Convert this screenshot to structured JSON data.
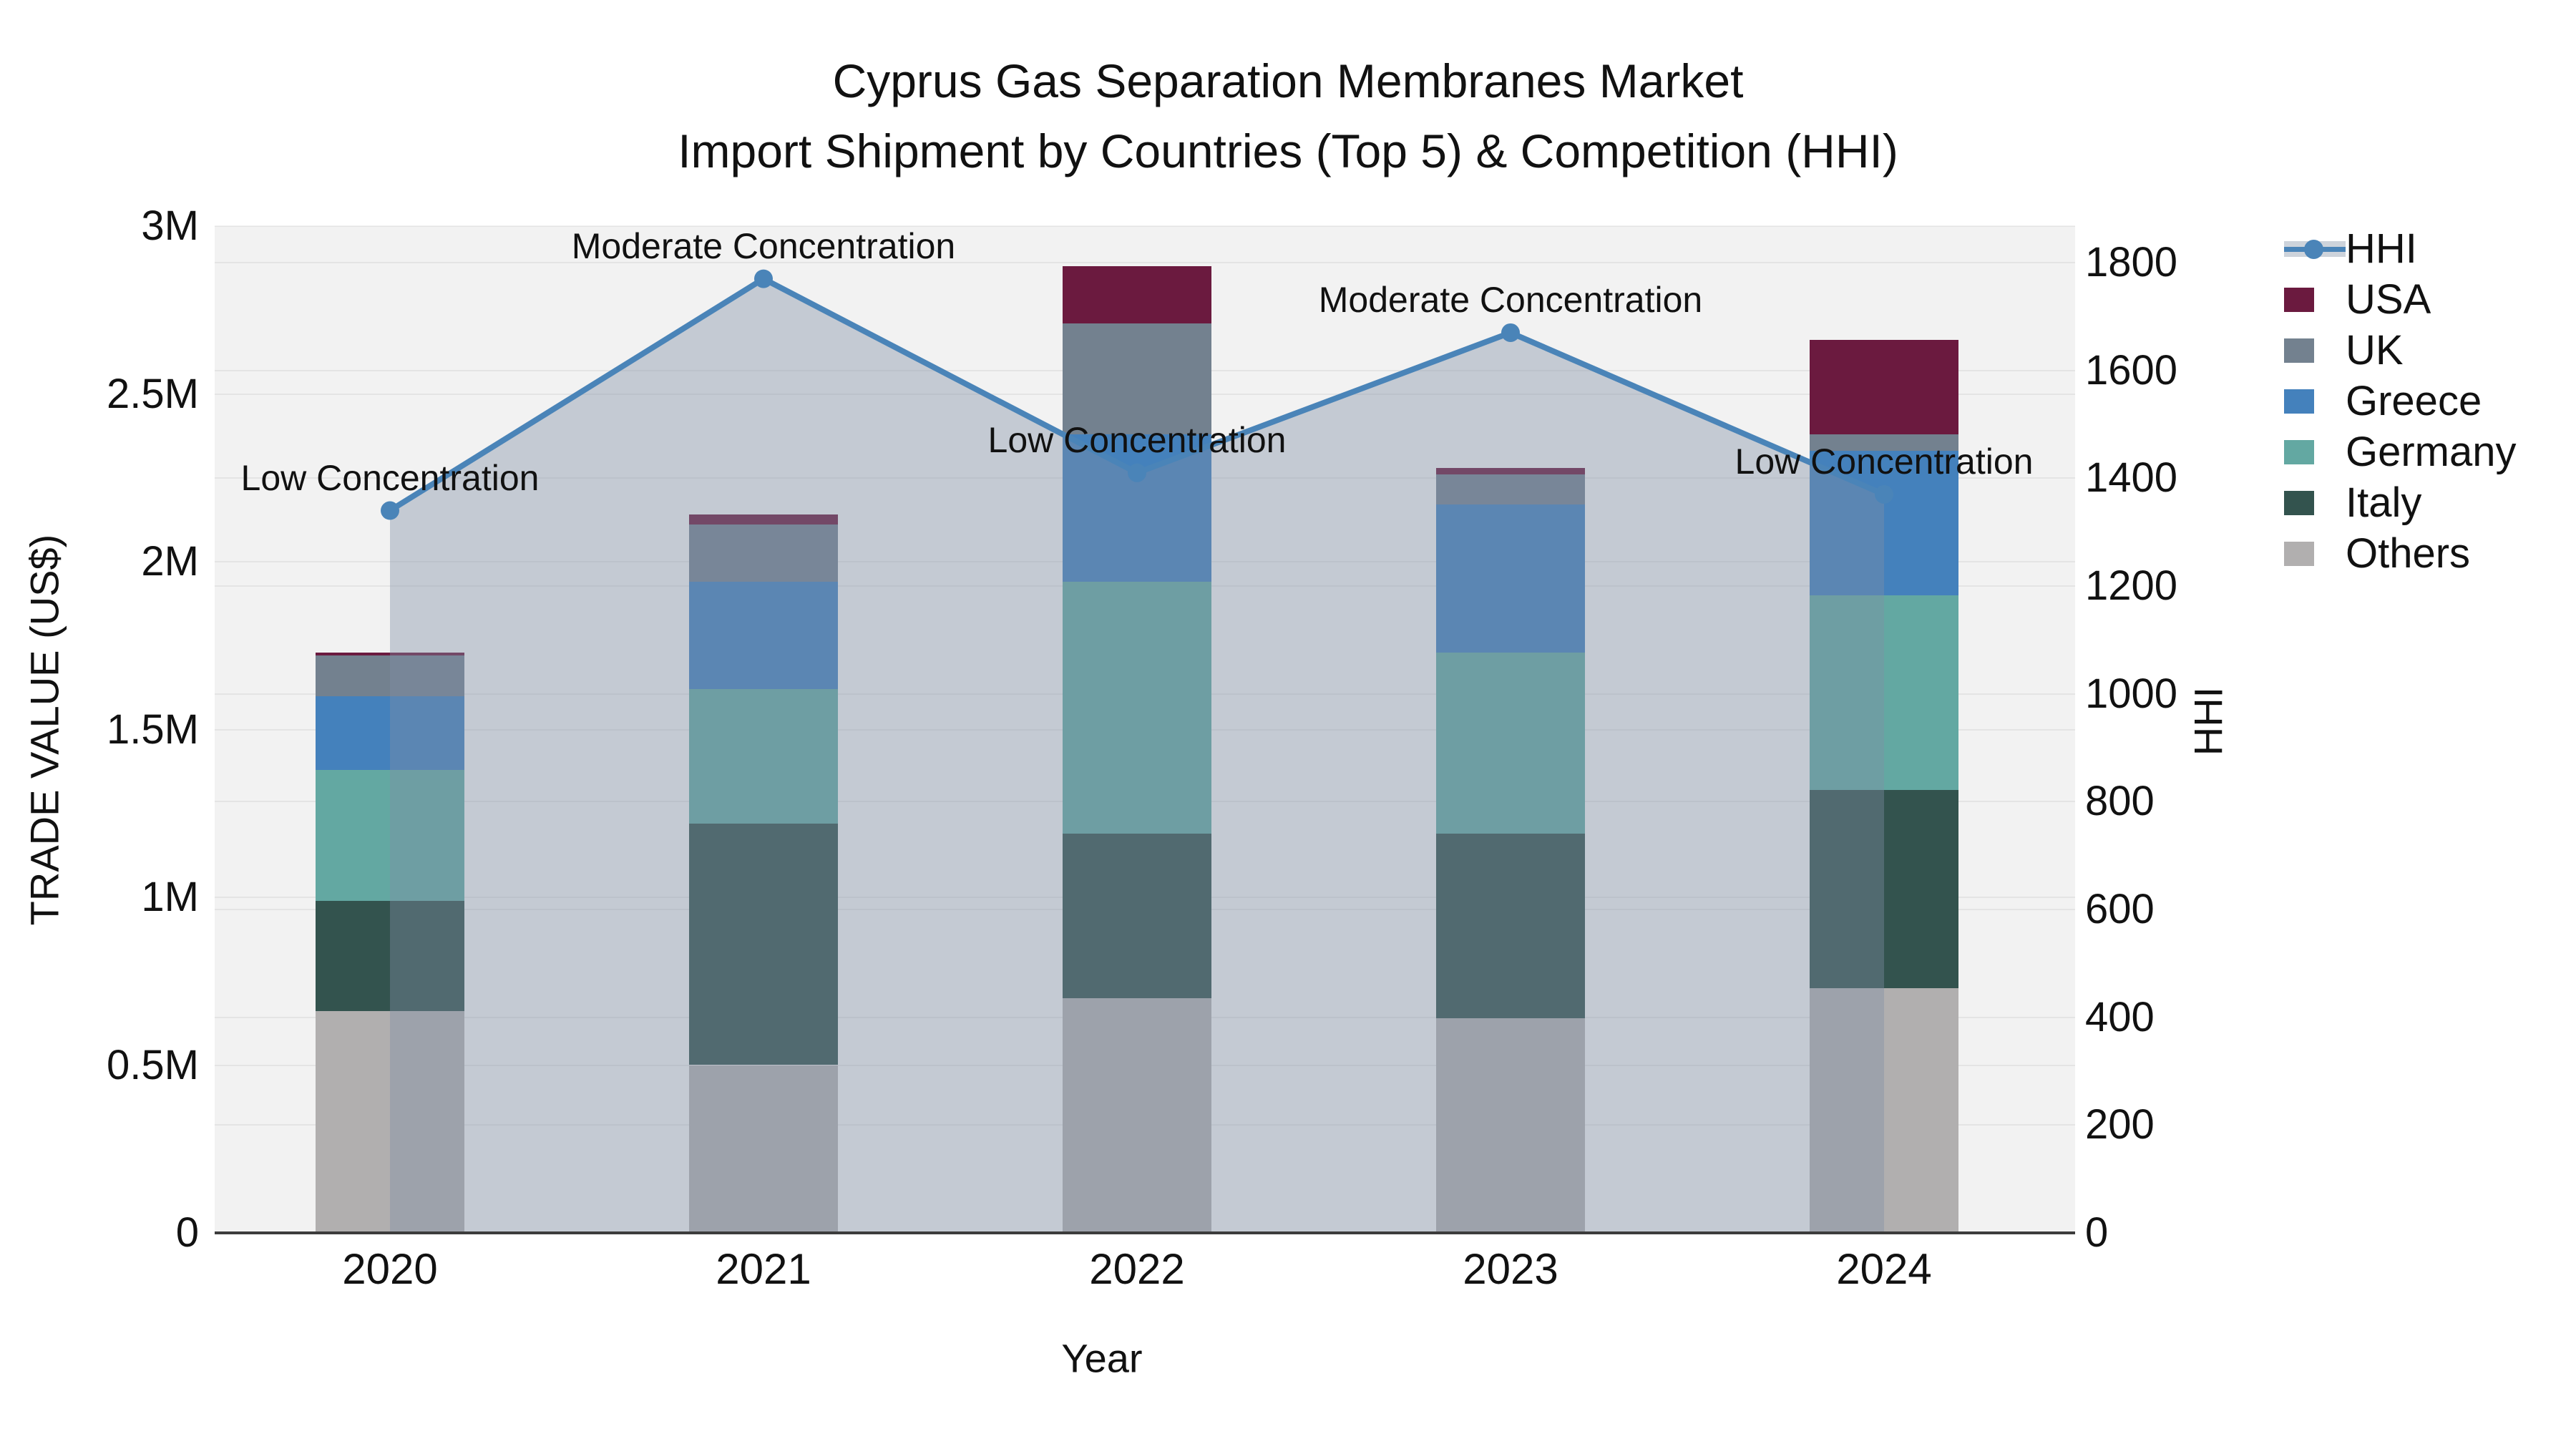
{
  "title": {
    "line1": "Cyprus Gas Separation Membranes Market",
    "line2": "Import Shipment by Countries (Top 5) & Competition (HHI)"
  },
  "axes": {
    "left": {
      "title": "TRADE VALUE (US$)",
      "tick_labels": [
        "0",
        "0.5M",
        "1M",
        "1.5M",
        "2M",
        "2.5M",
        "3M"
      ],
      "tick_values_musd": [
        0,
        0.5,
        1,
        1.5,
        2,
        2.5,
        3
      ],
      "range_musd": [
        0,
        3
      ]
    },
    "right": {
      "title": "HHI",
      "tick_labels": [
        "0",
        "200",
        "400",
        "600",
        "800",
        "1000",
        "1200",
        "1400",
        "1600",
        "1800"
      ],
      "tick_values": [
        0,
        200,
        400,
        600,
        800,
        1000,
        1200,
        1400,
        1600,
        1800
      ],
      "range": [
        0,
        1867
      ]
    },
    "x": {
      "title": "Year",
      "tick_labels": [
        "2020",
        "2021",
        "2022",
        "2023",
        "2024"
      ]
    }
  },
  "legend": {
    "items": [
      {
        "label": "HHI",
        "type": "line",
        "color": "#4a84b8"
      },
      {
        "label": "USA",
        "type": "square",
        "color": "#6b1a3f"
      },
      {
        "label": "UK",
        "type": "square",
        "color": "#73818f"
      },
      {
        "label": "Greece",
        "type": "square",
        "color": "#4481bc"
      },
      {
        "label": "Germany",
        "type": "square",
        "color": "#63a8a2"
      },
      {
        "label": "Italy",
        "type": "square",
        "color": "#33534e"
      },
      {
        "label": "Others",
        "type": "square",
        "color": "#b1afaf"
      }
    ]
  },
  "chart_data": {
    "type": "stacked-bar+line",
    "categories": [
      "2020",
      "2021",
      "2022",
      "2023",
      "2024"
    ],
    "stack_order": "bottom_to_top",
    "series": [
      {
        "name": "Others",
        "color": "#b1afaf",
        "values_musd": [
          0.66,
          0.5,
          0.7,
          0.64,
          0.73
        ]
      },
      {
        "name": "Italy",
        "color": "#33534e",
        "values_musd": [
          0.33,
          0.72,
          0.49,
          0.55,
          0.59
        ]
      },
      {
        "name": "Germany",
        "color": "#63a8a2",
        "values_musd": [
          0.39,
          0.4,
          0.75,
          0.54,
          0.58
        ]
      },
      {
        "name": "Greece",
        "color": "#4481bc",
        "values_musd": [
          0.22,
          0.32,
          0.44,
          0.44,
          0.43
        ]
      },
      {
        "name": "UK",
        "color": "#73818f",
        "values_musd": [
          0.12,
          0.17,
          0.33,
          0.09,
          0.05
        ]
      },
      {
        "name": "USA",
        "color": "#6b1a3f",
        "values_musd": [
          0.01,
          0.03,
          0.17,
          0.02,
          0.28
        ]
      }
    ],
    "bar_totals_musd": [
      1.73,
      2.14,
      2.88,
      2.28,
      2.66
    ],
    "line_series": {
      "name": "HHI",
      "axis": "right",
      "color": "#4a84b8",
      "fill_color": "rgba(128,143,166,0.40)",
      "values": [
        1340,
        1770,
        1410,
        1670,
        1370
      ]
    },
    "annotations": [
      {
        "text": "Low Concentration",
        "category": "2020"
      },
      {
        "text": "Moderate Concentration",
        "category": "2021"
      },
      {
        "text": "Low Concentration",
        "category": "2022"
      },
      {
        "text": "Moderate Concentration",
        "category": "2023"
      },
      {
        "text": "Low Concentration",
        "category": "2024"
      }
    ],
    "xlabel": "Year",
    "ylabel_left": "TRADE VALUE (US$)",
    "ylabel_right": "HHI",
    "grid": true,
    "legend_position": "right"
  },
  "colors": {
    "plot_background": "#f2f2f2",
    "page_background": "#ffffff",
    "axis_line": "#3c3c3c",
    "text": "#111111",
    "hhi_line": "#4a84b8",
    "hhi_fill": "rgba(128,143,166,0.40)"
  }
}
